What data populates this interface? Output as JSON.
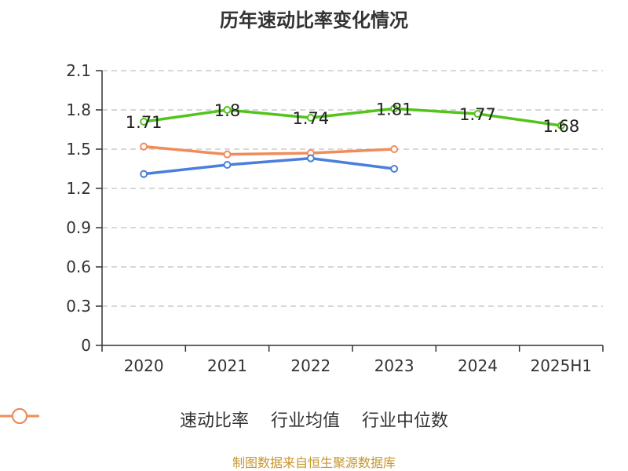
{
  "title": "历年速动比率变化情况",
  "footer": "制图数据来自恒生聚源数据库",
  "colors": {
    "series1": "#52c41a",
    "series2": "#4a7fdb",
    "series3": "#f08c5a",
    "grid": "#cccccc",
    "axis": "#333333"
  },
  "chart_data": {
    "type": "line",
    "categories": [
      "2020",
      "2021",
      "2022",
      "2023",
      "2024",
      "2025H1"
    ],
    "ylim": [
      0,
      2.1
    ],
    "yticks": [
      "0",
      "0.3",
      "0.6",
      "0.9",
      "1.2",
      "1.5",
      "1.8",
      "2.1"
    ],
    "grid": true,
    "legend_position": "bottom",
    "series": [
      {
        "name": "速动比率",
        "values": [
          1.71,
          1.8,
          1.74,
          1.81,
          1.77,
          1.68
        ],
        "labels": [
          "1.71",
          "1.8",
          "1.74",
          "1.81",
          "1.77",
          "1.68"
        ]
      },
      {
        "name": "行业均值",
        "values": [
          1.31,
          1.38,
          1.43,
          1.35,
          null,
          null
        ]
      },
      {
        "name": "行业中位数",
        "values": [
          1.52,
          1.46,
          1.47,
          1.5,
          null,
          null
        ]
      }
    ]
  }
}
